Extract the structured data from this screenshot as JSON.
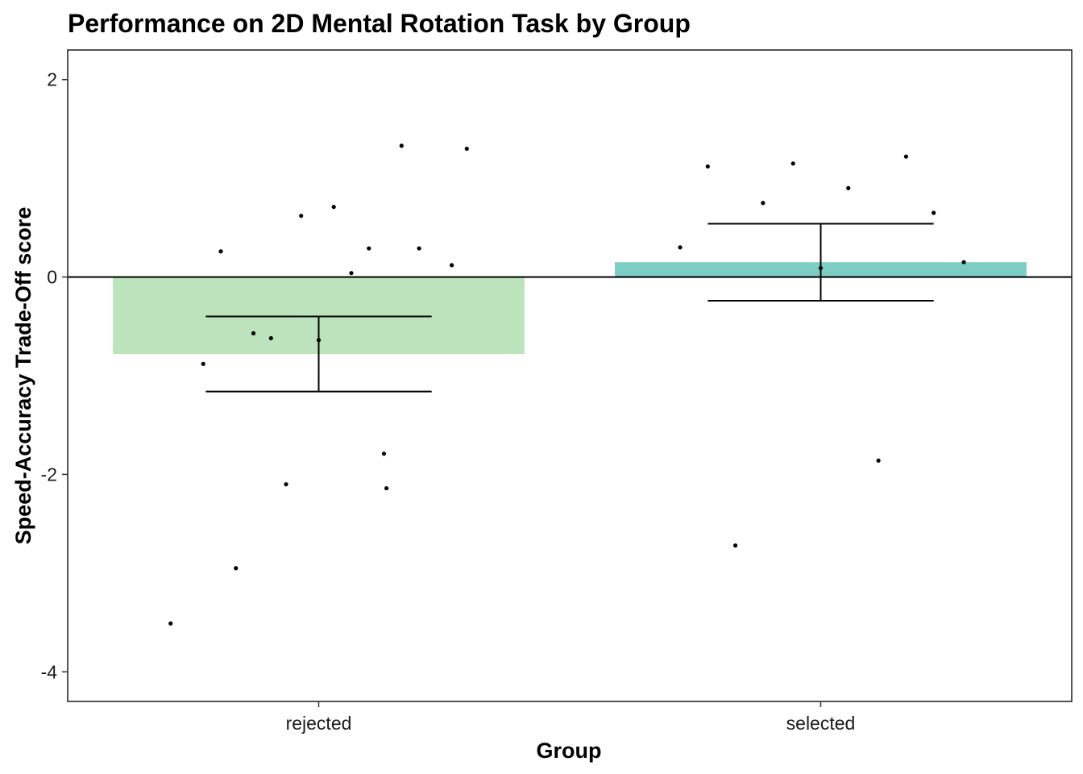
{
  "chart_data": {
    "type": "bar",
    "title": "Performance on 2D Mental Rotation Task by Group",
    "xlabel": "Group",
    "ylabel": "Speed-Accuracy Trade-Off score",
    "categories": [
      "rejected",
      "selected"
    ],
    "values": [
      -0.78,
      0.15
    ],
    "error_bars": [
      {
        "lower": -1.16,
        "upper": -0.4
      },
      {
        "lower": -0.24,
        "upper": 0.54
      }
    ],
    "bar_colors": [
      "#bce4bc",
      "#7ccdc4"
    ],
    "ylim": [
      -4.3,
      2.3
    ],
    "yticks": [
      -4,
      -2,
      0,
      2
    ],
    "ytick_labels": [
      "-4",
      "-2",
      "0",
      "2"
    ],
    "reference_line_y": 0,
    "grid": false,
    "legend": "none",
    "points": [
      {
        "group": "rejected",
        "jitter": -0.59,
        "y": -3.51
      },
      {
        "group": "rejected",
        "jitter": -0.33,
        "y": -2.95
      },
      {
        "group": "rejected",
        "jitter": -0.13,
        "y": -2.1
      },
      {
        "group": "rejected",
        "jitter": 0.27,
        "y": -2.14
      },
      {
        "group": "rejected",
        "jitter": 0.26,
        "y": -1.79
      },
      {
        "group": "rejected",
        "jitter": -0.46,
        "y": -0.88
      },
      {
        "group": "rejected",
        "jitter": -0.26,
        "y": -0.57
      },
      {
        "group": "rejected",
        "jitter": -0.19,
        "y": -0.62
      },
      {
        "group": "rejected",
        "jitter": 0.0,
        "y": -0.64
      },
      {
        "group": "rejected",
        "jitter": 0.13,
        "y": 0.04
      },
      {
        "group": "rejected",
        "jitter": 0.53,
        "y": 0.12
      },
      {
        "group": "rejected",
        "jitter": -0.39,
        "y": 0.26
      },
      {
        "group": "rejected",
        "jitter": 0.2,
        "y": 0.29
      },
      {
        "group": "rejected",
        "jitter": 0.4,
        "y": 0.29
      },
      {
        "group": "rejected",
        "jitter": -0.07,
        "y": 0.62
      },
      {
        "group": "rejected",
        "jitter": 0.06,
        "y": 0.71
      },
      {
        "group": "rejected",
        "jitter": 0.33,
        "y": 1.33
      },
      {
        "group": "rejected",
        "jitter": 0.59,
        "y": 1.3
      },
      {
        "group": "selected",
        "jitter": -0.56,
        "y": 0.3
      },
      {
        "group": "selected",
        "jitter": -0.45,
        "y": 1.12
      },
      {
        "group": "selected",
        "jitter": -0.34,
        "y": -2.72
      },
      {
        "group": "selected",
        "jitter": -0.23,
        "y": 0.75
      },
      {
        "group": "selected",
        "jitter": -0.11,
        "y": 1.15
      },
      {
        "group": "selected",
        "jitter": 0.0,
        "y": 0.09
      },
      {
        "group": "selected",
        "jitter": 0.11,
        "y": 0.9
      },
      {
        "group": "selected",
        "jitter": 0.23,
        "y": -1.86
      },
      {
        "group": "selected",
        "jitter": 0.34,
        "y": 1.22
      },
      {
        "group": "selected",
        "jitter": 0.45,
        "y": 0.65
      },
      {
        "group": "selected",
        "jitter": 0.57,
        "y": 0.15
      }
    ]
  }
}
